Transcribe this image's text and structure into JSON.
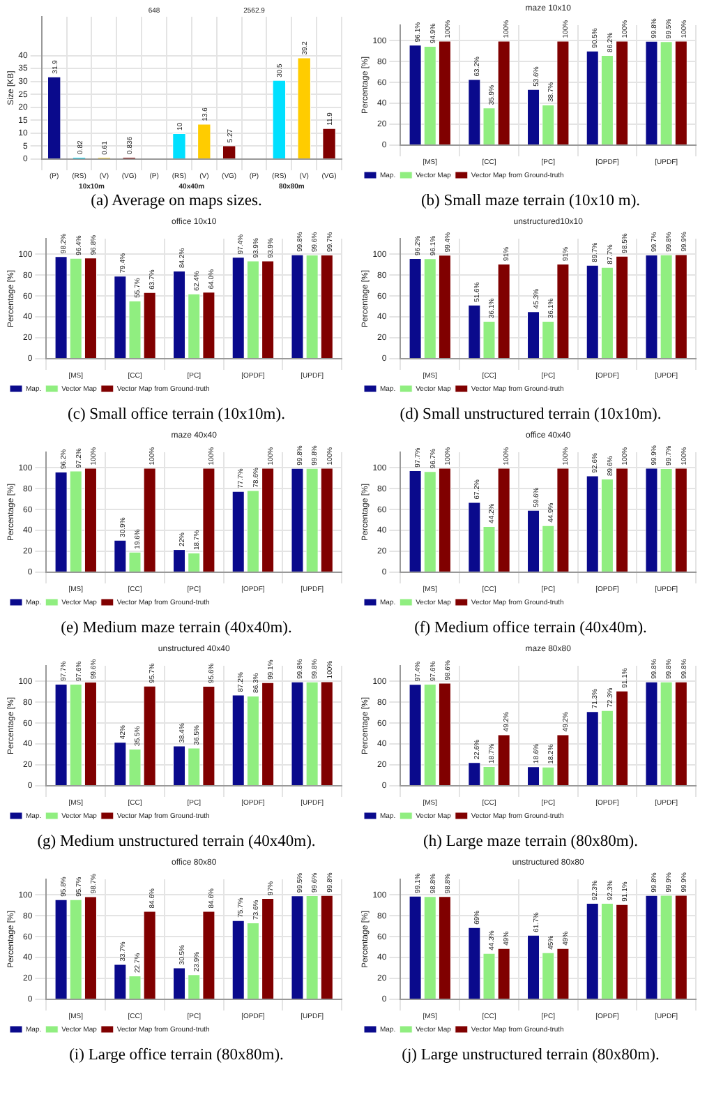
{
  "chart_data": [
    {
      "type": "bar",
      "title": "(a) Average on maps sizes.",
      "ylabel": "Size [KB]",
      "categories": [
        "(P)",
        "(RS)",
        "(V)",
        "(VG)",
        "(P)",
        "(RS)",
        "(V)",
        "(VG)",
        "(P)",
        "(RS)",
        "(V)",
        "(VG)"
      ],
      "values": [
        31.9,
        0.82,
        0.61,
        0.836,
        null,
        10,
        13.6,
        5.27,
        null,
        30.5,
        39.2,
        11.9
      ],
      "value_labels": [
        "31.9",
        "0.82",
        "0.61",
        "0.836",
        "648",
        "10",
        "13.6",
        "5.27",
        "2562.9",
        "30.5",
        "39.2",
        "11.9"
      ],
      "colors": [
        "#0a0a8c",
        "#00e0ff",
        "#ffcc00",
        "#800000",
        "#0a0a8c",
        "#00e0ff",
        "#ffcc00",
        "#800000",
        "#0a0a8c",
        "#00e0ff",
        "#ffcc00",
        "#800000"
      ],
      "annotations": [
        "10x10m",
        "40x40m",
        "80x80m"
      ],
      "ylim": [
        0,
        55
      ],
      "yticks": [
        0,
        5,
        10,
        15,
        20,
        25,
        30,
        35,
        40
      ],
      "grid": true
    },
    {
      "type": "bar",
      "title": "(b) Small maze terrain (10x10 m).",
      "subtitle": "maze 10x10",
      "ylabel": "Percentage [%]",
      "categories": [
        "[MS]",
        "[CC]",
        "[PC]",
        "[OPDF]",
        "[UPDF]"
      ],
      "ylim": [
        0,
        115
      ],
      "yticks": [
        0,
        20,
        40,
        60,
        80,
        100
      ],
      "grid": true,
      "legend": "bottom",
      "series": [
        {
          "name": "Map.",
          "color": "#0a0a8c",
          "values": [
            96.1,
            63.2,
            53.6,
            90.5,
            99.8
          ],
          "value_labels": [
            "96.1%",
            "63.2%",
            "53.6%",
            "90.5%",
            "99.8%"
          ]
        },
        {
          "name": "Vector Map",
          "color": "#90ee80",
          "values": [
            94.9,
            35.9,
            38.7,
            86.2,
            99.5
          ],
          "value_labels": [
            "94.9%",
            "35.9%",
            "38.7%",
            "86.2%",
            "99.5%"
          ]
        },
        {
          "name": "Vector Map from Ground-truth",
          "color": "#800000",
          "values": [
            100,
            100,
            100,
            100,
            100
          ],
          "value_labels": [
            "100%",
            "100%",
            "100%",
            "100%",
            "100%"
          ]
        }
      ]
    },
    {
      "type": "bar",
      "title": "(c) Small office terrain (10x10m).",
      "subtitle": "office 10x10",
      "ylabel": "Percentage [%]",
      "categories": [
        "[MS]",
        "[CC]",
        "[PC]",
        "[OPDF]",
        "[UPDF]"
      ],
      "ylim": [
        0,
        115
      ],
      "yticks": [
        0,
        20,
        40,
        60,
        80,
        100
      ],
      "grid": true,
      "legend": "bottom",
      "series": [
        {
          "name": "Map.",
          "color": "#0a0a8c",
          "values": [
            98.2,
            79.4,
            84.2,
            97.4,
            99.8
          ],
          "value_labels": [
            "98.2%",
            "79.4%",
            "84.2%",
            "97.4%",
            "99.8%"
          ]
        },
        {
          "name": "Vector Map",
          "color": "#90ee80",
          "values": [
            96.4,
            55.7,
            62.4,
            93.9,
            99.6
          ],
          "value_labels": [
            "96.4%",
            "55.7%",
            "62.4%",
            "93.9%",
            "99.6%"
          ]
        },
        {
          "name": "Vector Map from Ground-truth",
          "color": "#800000",
          "values": [
            96.8,
            63.7,
            64.0,
            93.9,
            99.7
          ],
          "value_labels": [
            "96.8%",
            "63.7%",
            "64.0%",
            "93.9%",
            "99.7%"
          ]
        }
      ]
    },
    {
      "type": "bar",
      "title": "(d) Small unstructured terrain (10x10m).",
      "subtitle": "unstructured10x10",
      "ylabel": "Percentage [%]",
      "categories": [
        "[MS]",
        "[CC]",
        "[PC]",
        "[OPDF]",
        "[UPDF]"
      ],
      "ylim": [
        0,
        115
      ],
      "yticks": [
        0,
        20,
        40,
        60,
        80,
        100
      ],
      "grid": true,
      "legend": "bottom",
      "series": [
        {
          "name": "Map.",
          "color": "#0a0a8c",
          "values": [
            96.2,
            51.6,
            45.3,
            89.7,
            99.7
          ],
          "value_labels": [
            "96.2%",
            "51.6%",
            "45.3%",
            "89.7%",
            "99.7%"
          ]
        },
        {
          "name": "Vector Map",
          "color": "#90ee80",
          "values": [
            96.1,
            36.1,
            36.1,
            87.7,
            99.8
          ],
          "value_labels": [
            "96.1%",
            "36.1%",
            "36.1%",
            "87.7%",
            "99.8%"
          ]
        },
        {
          "name": "Vector Map from Ground-truth",
          "color": "#800000",
          "values": [
            99.4,
            91,
            91,
            98.5,
            99.9
          ],
          "value_labels": [
            "99.4%",
            "91%",
            "91%",
            "98.5%",
            "99.9%"
          ]
        }
      ]
    },
    {
      "type": "bar",
      "title": "(e) Medium maze terrain (40x40m).",
      "subtitle": "maze 40x40",
      "ylabel": "Percentage [%]",
      "categories": [
        "[MS]",
        "[CC]",
        "[PC]",
        "[OPDF]",
        "[UPDF]"
      ],
      "ylim": [
        0,
        115
      ],
      "yticks": [
        0,
        20,
        40,
        60,
        80,
        100
      ],
      "grid": true,
      "legend": "bottom",
      "series": [
        {
          "name": "Map.",
          "color": "#0a0a8c",
          "values": [
            96.2,
            30.9,
            22,
            77.7,
            99.8
          ],
          "value_labels": [
            "96.2%",
            "30.9%",
            "22%",
            "77.7%",
            "99.8%"
          ]
        },
        {
          "name": "Vector Map",
          "color": "#90ee80",
          "values": [
            97.2,
            19.6,
            18.7,
            78.6,
            99.8
          ],
          "value_labels": [
            "97.2%",
            "19.6%",
            "18.7%",
            "78.6%",
            "99.8%"
          ]
        },
        {
          "name": "Vector Map from Ground-truth",
          "color": "#800000",
          "values": [
            100,
            100,
            100,
            100,
            100
          ],
          "value_labels": [
            "100%",
            "100%",
            "100%",
            "100%",
            "100%"
          ]
        }
      ]
    },
    {
      "type": "bar",
      "title": "(f) Medium office terrain (40x40m).",
      "subtitle": "office 40x40",
      "ylabel": "Percentage [%]",
      "categories": [
        "[MS]",
        "[CC]",
        "[PC]",
        "[OPDF]",
        "[UPDF]"
      ],
      "ylim": [
        0,
        115
      ],
      "yticks": [
        0,
        20,
        40,
        60,
        80,
        100
      ],
      "grid": true,
      "legend": "bottom",
      "series": [
        {
          "name": "Map.",
          "color": "#0a0a8c",
          "values": [
            97.7,
            67.2,
            59.6,
            92.6,
            99.9
          ],
          "value_labels": [
            "97.7%",
            "67.2%",
            "59.6%",
            "92.6%",
            "99.9%"
          ]
        },
        {
          "name": "Vector Map",
          "color": "#90ee80",
          "values": [
            96.7,
            44.2,
            44.9,
            89.6,
            99.7
          ],
          "value_labels": [
            "96.7%",
            "44.2%",
            "44.9%",
            "89.6%",
            "99.7%"
          ]
        },
        {
          "name": "Vector Map from Ground-truth",
          "color": "#800000",
          "values": [
            100,
            100,
            100,
            100,
            100
          ],
          "value_labels": [
            "100%",
            "100%",
            "100%",
            "100%",
            "100%"
          ]
        }
      ]
    },
    {
      "type": "bar",
      "title": "(g) Medium unstructured terrain (40x40m).",
      "subtitle": "unstructured 40x40",
      "ylabel": "Percentage [%]",
      "categories": [
        "[MS]",
        "[CC]",
        "[PC]",
        "[OPDF]",
        "[UPDF]"
      ],
      "ylim": [
        0,
        115
      ],
      "yticks": [
        0,
        20,
        40,
        60,
        80,
        100
      ],
      "grid": true,
      "legend": "bottom",
      "series": [
        {
          "name": "Map.",
          "color": "#0a0a8c",
          "values": [
            97.7,
            42,
            38.4,
            87.2,
            99.8
          ],
          "value_labels": [
            "97.7%",
            "42%",
            "38.4%",
            "87.2%",
            "99.8%"
          ]
        },
        {
          "name": "Vector Map",
          "color": "#90ee80",
          "values": [
            97.6,
            35.5,
            36.5,
            86.3,
            99.8
          ],
          "value_labels": [
            "97.6%",
            "35.5%",
            "36.5%",
            "86.3%",
            "99.8%"
          ]
        },
        {
          "name": "Vector Map from Ground-truth",
          "color": "#800000",
          "values": [
            99.6,
            95.7,
            95.6,
            99.1,
            100
          ],
          "value_labels": [
            "99.6%",
            "95.7%",
            "95.6%",
            "99.1%",
            "100%"
          ]
        }
      ]
    },
    {
      "type": "bar",
      "title": "(h) Large maze terrain (80x80m).",
      "subtitle": "maze 80x80",
      "ylabel": "Percentage [%]",
      "categories": [
        "[MS]",
        "[CC]",
        "[PC]",
        "[OPDF]",
        "[UPDF]"
      ],
      "ylim": [
        0,
        115
      ],
      "yticks": [
        0,
        20,
        40,
        60,
        80,
        100
      ],
      "grid": true,
      "legend": "bottom",
      "series": [
        {
          "name": "Map.",
          "color": "#0a0a8c",
          "values": [
            97.4,
            22.6,
            18.6,
            71.3,
            99.8
          ],
          "value_labels": [
            "97.4%",
            "22.6%",
            "18.6%",
            "71.3%",
            "99.8%"
          ]
        },
        {
          "name": "Vector Map",
          "color": "#90ee80",
          "values": [
            97.6,
            18.7,
            18.2,
            72.3,
            99.8
          ],
          "value_labels": [
            "97.6%",
            "18.7%",
            "18.2%",
            "72.3%",
            "99.8%"
          ]
        },
        {
          "name": "Vector Map from Ground-truth",
          "color": "#800000",
          "values": [
            98.6,
            49.2,
            49.2,
            91.1,
            99.8
          ],
          "value_labels": [
            "98.6%",
            "49.2%",
            "49.2%",
            "91.1%",
            "99.8%"
          ]
        }
      ]
    },
    {
      "type": "bar",
      "title": "(i) Large office terrain (80x80m).",
      "subtitle": "office 80x80",
      "ylabel": "Percentage [%]",
      "categories": [
        "[MS]",
        "[CC]",
        "[PC]",
        "[OPDF]",
        "[UPDF]"
      ],
      "ylim": [
        0,
        115
      ],
      "yticks": [
        0,
        20,
        40,
        60,
        80,
        100
      ],
      "grid": true,
      "legend": "bottom",
      "series": [
        {
          "name": "Map.",
          "color": "#0a0a8c",
          "values": [
            95.8,
            33.7,
            30.5,
            75.7,
            99.5
          ],
          "value_labels": [
            "95.8%",
            "33.7%",
            "30.5%",
            "75.7%",
            "99.5%"
          ]
        },
        {
          "name": "Vector Map",
          "color": "#90ee80",
          "values": [
            95.7,
            22.7,
            23.9,
            73.6,
            99.6
          ],
          "value_labels": [
            "95.7%",
            "22.7%",
            "23.9%",
            "73.6%",
            "99.6%"
          ]
        },
        {
          "name": "Vector Map from Ground-truth",
          "color": "#800000",
          "values": [
            98.7,
            84.6,
            84.6,
            97,
            99.8
          ],
          "value_labels": [
            "98.7%",
            "84.6%",
            "84.6%",
            "97%",
            "99.8%"
          ]
        }
      ]
    },
    {
      "type": "bar",
      "title": "(j) Large unstructured terrain (80x80m).",
      "subtitle": "unstructured 80x80",
      "ylabel": "Percentage [%]",
      "categories": [
        "[MS]",
        "[CC]",
        "[PC]",
        "[OPDF]",
        "[UPDF]"
      ],
      "ylim": [
        0,
        115
      ],
      "yticks": [
        0,
        20,
        40,
        60,
        80,
        100
      ],
      "grid": true,
      "legend": "bottom",
      "series": [
        {
          "name": "Map.",
          "color": "#0a0a8c",
          "values": [
            99.1,
            69,
            61.7,
            92.3,
            99.8
          ],
          "value_labels": [
            "99.1%",
            "69%",
            "61.7%",
            "92.3%",
            "99.8%"
          ]
        },
        {
          "name": "Vector Map",
          "color": "#90ee80",
          "values": [
            98.8,
            44.3,
            45,
            92.3,
            99.9
          ],
          "value_labels": [
            "98.8%",
            "44.3%",
            "45%",
            "92.3%",
            "99.9%"
          ]
        },
        {
          "name": "Vector Map from Ground-truth",
          "color": "#800000",
          "values": [
            98.8,
            49,
            49,
            91.1,
            99.9
          ],
          "value_labels": [
            "98.8%",
            "49%",
            "49%",
            "91.1%",
            "99.9%"
          ]
        }
      ]
    }
  ]
}
